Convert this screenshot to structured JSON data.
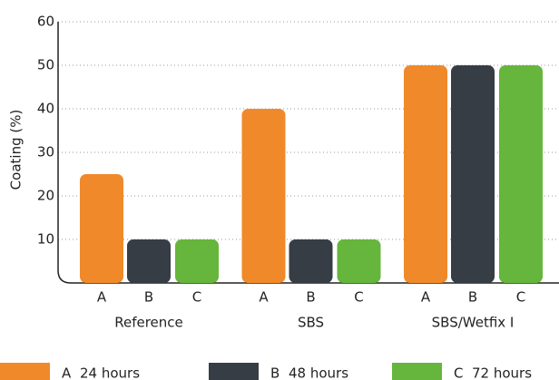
{
  "chart_data": {
    "type": "grouped_bar",
    "y_label": "Coating (%)",
    "categories": [
      "Reference",
      "SBS",
      "SBS/Wetfix I"
    ],
    "series": [
      {
        "key": "A",
        "name": "24 hours",
        "color": "#f0892a",
        "values": [
          25,
          40,
          50
        ]
      },
      {
        "key": "B",
        "name": "48 hours",
        "color": "#373d45",
        "values": [
          10,
          10,
          50
        ]
      },
      {
        "key": "C",
        "name": "72 hours",
        "color": "#66b53c",
        "values": [
          10,
          10,
          50
        ]
      }
    ],
    "ylim": [
      0,
      60
    ],
    "yticks": [
      10,
      20,
      30,
      40,
      50,
      60
    ],
    "grid": true
  }
}
